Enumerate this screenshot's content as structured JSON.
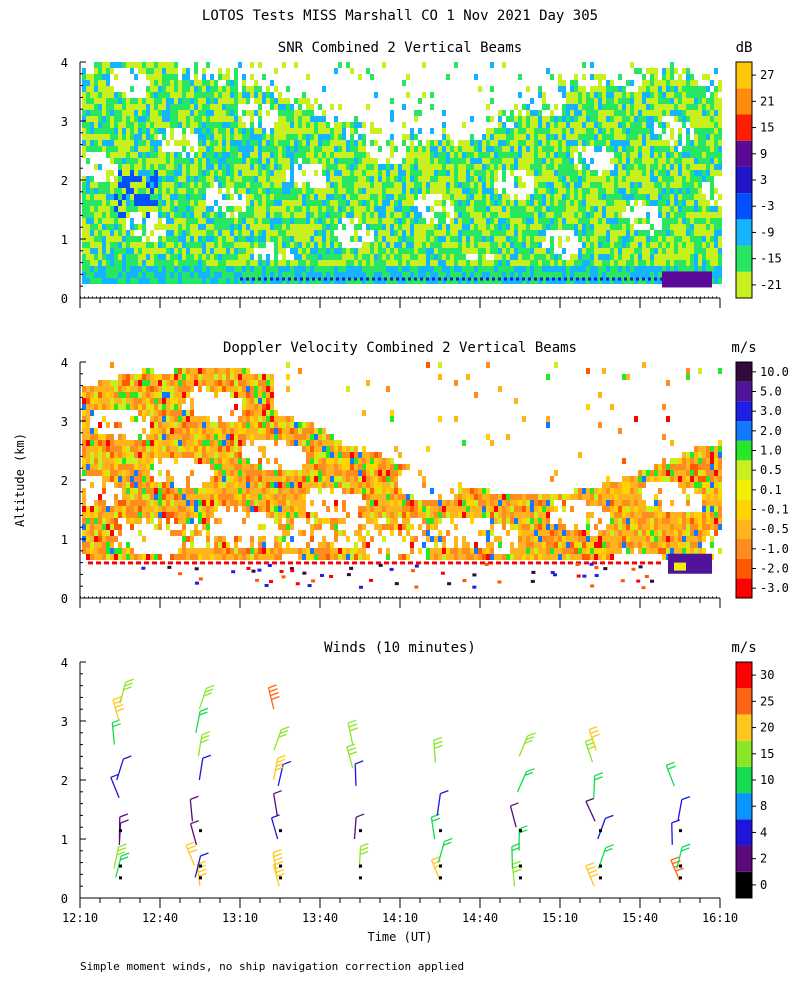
{
  "page_title": "LOTOS Tests MISS Marshall CO   1 Nov 2021 Day 305",
  "y_axis_label": "Altitude (km)",
  "x_axis_label": "Time (UT)",
  "footnote": "Simple moment winds, no ship navigation correction applied",
  "chart_data": [
    {
      "type": "heatmap",
      "title": "SNR Combined 2 Vertical Beams",
      "units": "dB",
      "x_range": [
        "12:10",
        "16:10"
      ],
      "ylim": [
        0,
        4
      ],
      "y_ticks": [
        "0",
        "1",
        "2",
        "3",
        "4"
      ],
      "colorbar": {
        "labels": [
          "-21",
          "-15",
          "-9",
          "-3",
          "3",
          "9",
          "15",
          "21",
          "27"
        ],
        "colors": [
          "#c8f01e",
          "#28e664",
          "#14b4ff",
          "#0050ff",
          "#1e14c8",
          "#5a0a96",
          "#ff1e00",
          "#ff8c0a",
          "#ffc80a"
        ]
      },
      "features": [
        {
          "desc": "main echo layer",
          "alt_km_from": 0.3,
          "alt_km_to": 3.5
        },
        {
          "desc": "strong near-surface band",
          "alt_km_from": 0.3,
          "alt_km_to": 0.55
        }
      ]
    },
    {
      "type": "heatmap",
      "title": "Doppler Velocity Combined 2 Vertical Beams",
      "units": "m/s",
      "x_range": [
        "12:10",
        "16:10"
      ],
      "ylim": [
        0,
        4
      ],
      "y_ticks": [
        "0",
        "1",
        "2",
        "3",
        "4"
      ],
      "colorbar": {
        "labels": [
          "-3.0",
          "-2.0",
          "-1.0",
          "-0.5",
          "-0.1",
          "0.1",
          "0.5",
          "1.0",
          "2.0",
          "3.0",
          "5.0",
          "10.0"
        ],
        "colors": [
          "#ff0000",
          "#ff5a00",
          "#ff8c1e",
          "#ffb41e",
          "#ffd200",
          "#f0f000",
          "#c8f01e",
          "#28e628",
          "#1478ff",
          "#1e1ee6",
          "#50149b",
          "#320a3c"
        ]
      }
    },
    {
      "type": "scatter",
      "title": "Winds (10 minutes)",
      "units": "m/s",
      "x_ticks": [
        "12:10",
        "12:40",
        "13:10",
        "13:40",
        "14:10",
        "14:40",
        "15:10",
        "15:40",
        "16:10"
      ],
      "ylim": [
        0,
        4
      ],
      "y_ticks": [
        "0",
        "1",
        "2",
        "3",
        "4"
      ],
      "colorbar": {
        "labels": [
          "0",
          "2",
          "4",
          "8",
          "10",
          "15",
          "20",
          "25",
          "30"
        ],
        "colors": [
          "#000000",
          "#5a0a78",
          "#1e14dc",
          "#0a96ff",
          "#14dc50",
          "#8ce628",
          "#ffc81e",
          "#ff6414",
          "#ff0000"
        ]
      },
      "profile_times": [
        "12:25",
        "12:55",
        "13:25",
        "13:55",
        "14:25",
        "14:55",
        "15:25",
        "15:55"
      ],
      "profiles": [
        {
          "time": "12:25",
          "barbs": [
            {
              "alt": 0.35,
              "speed": 14
            },
            {
              "alt": 0.5,
              "speed": 16
            },
            {
              "alt": 0.9,
              "speed": 3
            },
            {
              "alt": 1.0,
              "speed": 3
            },
            {
              "alt": 1.7,
              "speed": 4
            },
            {
              "alt": 2.0,
              "speed": 4
            },
            {
              "alt": 2.6,
              "speed": 10
            },
            {
              "alt": 3.0,
              "speed": 24
            },
            {
              "alt": 3.3,
              "speed": 18
            }
          ]
        },
        {
          "time": "12:55",
          "barbs": [
            {
              "alt": 0.2,
              "speed": 24
            },
            {
              "alt": 0.35,
              "speed": 4
            },
            {
              "alt": 0.55,
              "speed": 20
            },
            {
              "alt": 0.9,
              "speed": 3
            },
            {
              "alt": 1.3,
              "speed": 3
            },
            {
              "alt": 2.0,
              "speed": 4
            },
            {
              "alt": 2.4,
              "speed": 16
            },
            {
              "alt": 2.8,
              "speed": 14
            },
            {
              "alt": 3.2,
              "speed": 18
            }
          ]
        },
        {
          "time": "13:25",
          "barbs": [
            {
              "alt": 0.2,
              "speed": 24
            },
            {
              "alt": 0.4,
              "speed": 22
            },
            {
              "alt": 1.0,
              "speed": 4
            },
            {
              "alt": 1.4,
              "speed": 3
            },
            {
              "alt": 1.9,
              "speed": 4
            },
            {
              "alt": 2.0,
              "speed": 22
            },
            {
              "alt": 2.5,
              "speed": 16
            },
            {
              "alt": 3.2,
              "speed": 25
            }
          ]
        },
        {
          "time": "13:55",
          "barbs": [
            {
              "alt": 0.5,
              "speed": 16
            },
            {
              "alt": 1.0,
              "speed": 3
            },
            {
              "alt": 1.9,
              "speed": 4
            },
            {
              "alt": 2.2,
              "speed": 16
            },
            {
              "alt": 2.6,
              "speed": 16
            }
          ]
        },
        {
          "time": "14:25",
          "barbs": [
            {
              "alt": 0.3,
              "speed": 20
            },
            {
              "alt": 0.6,
              "speed": 14
            },
            {
              "alt": 1.0,
              "speed": 10
            },
            {
              "alt": 1.4,
              "speed": 4
            },
            {
              "alt": 2.3,
              "speed": 16
            }
          ]
        },
        {
          "time": "14:55",
          "barbs": [
            {
              "alt": 0.2,
              "speed": 16
            },
            {
              "alt": 0.5,
              "speed": 14
            },
            {
              "alt": 0.8,
              "speed": 10
            },
            {
              "alt": 1.2,
              "speed": 3
            },
            {
              "alt": 1.8,
              "speed": 10
            },
            {
              "alt": 2.4,
              "speed": 16
            }
          ]
        },
        {
          "time": "15:25",
          "barbs": [
            {
              "alt": 0.2,
              "speed": 22
            },
            {
              "alt": 0.5,
              "speed": 14
            },
            {
              "alt": 1.0,
              "speed": 4
            },
            {
              "alt": 1.3,
              "speed": 3
            },
            {
              "alt": 1.7,
              "speed": 10
            },
            {
              "alt": 2.3,
              "speed": 16
            },
            {
              "alt": 2.5,
              "speed": 20
            }
          ]
        },
        {
          "time": "15:55",
          "barbs": [
            {
              "alt": 0.3,
              "speed": 28
            },
            {
              "alt": 0.5,
              "speed": 14
            },
            {
              "alt": 0.9,
              "speed": 4
            },
            {
              "alt": 1.3,
              "speed": 4
            },
            {
              "alt": 1.9,
              "speed": 14
            }
          ]
        }
      ]
    }
  ]
}
